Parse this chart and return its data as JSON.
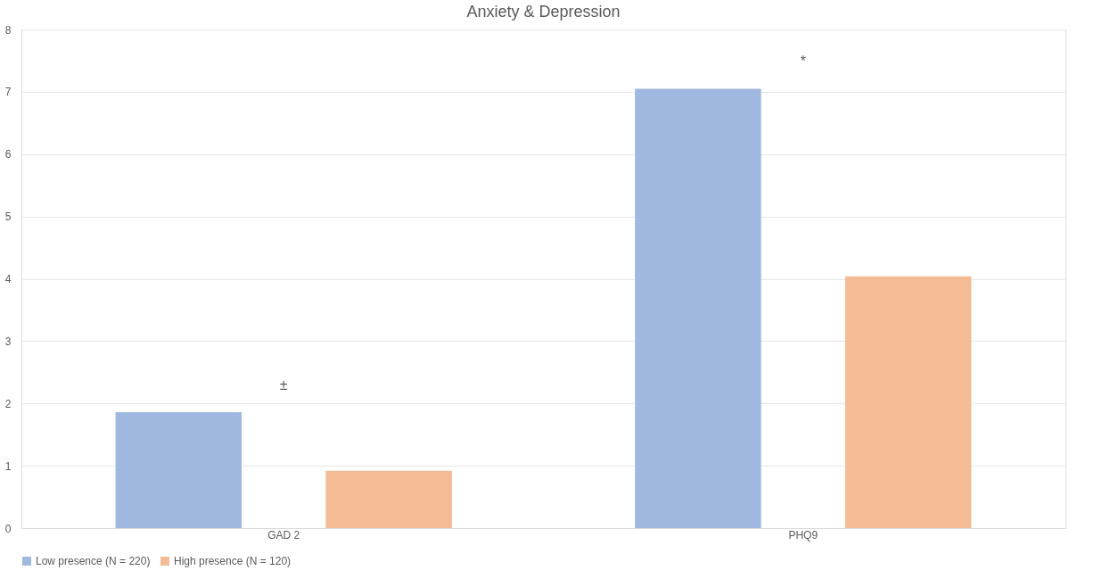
{
  "chart_data": {
    "type": "bar",
    "title": "Anxiety & Depression",
    "categories": [
      "GAD 2",
      "PHQ9"
    ],
    "series": [
      {
        "name": "Low presence (N = 220)",
        "color": "#a0b8e0",
        "values": [
          1.86,
          7.05
        ]
      },
      {
        "name": "High presence (N = 120)",
        "color": "#f4bc94",
        "values": [
          0.92,
          4.04
        ]
      }
    ],
    "ylim": [
      0,
      8
    ],
    "yticks": [
      0,
      1,
      2,
      3,
      4,
      5,
      6,
      7,
      8
    ],
    "grid": "y",
    "legend": "bottom",
    "annotations": [
      "±",
      "*"
    ]
  }
}
